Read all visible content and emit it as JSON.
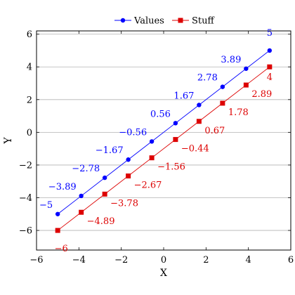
{
  "chart_data": {
    "type": "line",
    "xlabel": "X",
    "ylabel": "Y",
    "xlim": [
      -6,
      6
    ],
    "ylim": [
      -7.2,
      6.2
    ],
    "xticks": [
      -6,
      -4,
      -2,
      0,
      2,
      4,
      6
    ],
    "yticks": [
      -6,
      -4,
      -2,
      0,
      2,
      4,
      6
    ],
    "ytick_labels": [
      "−6",
      "−4",
      "−2",
      "0",
      "2",
      "4",
      "6"
    ],
    "xtick_labels": [
      "−6",
      "−4",
      "−2",
      "0",
      "2",
      "4",
      "6"
    ],
    "grid": "horizontal",
    "legend_placement": "top-center, outside",
    "series": [
      {
        "name": "Values",
        "color": "#0000ff",
        "marker": "circle",
        "x": [
          -5,
          -3.89,
          -2.78,
          -1.67,
          -0.56,
          0.56,
          1.67,
          2.78,
          3.89,
          5
        ],
        "y": [
          -5,
          -3.89,
          -2.78,
          -1.67,
          -0.56,
          0.56,
          1.67,
          2.78,
          3.89,
          5
        ],
        "labels": [
          "−5",
          "−3.89",
          "−2.78",
          "−1.67",
          "−0.56",
          "0.56",
          "1.67",
          "2.78",
          "3.89",
          "5"
        ]
      },
      {
        "name": "Stuff",
        "color": "#dd0000",
        "marker": "square",
        "x": [
          -5,
          -3.89,
          -2.78,
          -1.67,
          -0.56,
          0.56,
          1.67,
          2.78,
          3.89,
          5
        ],
        "y": [
          -6,
          -4.89,
          -3.78,
          -2.67,
          -1.56,
          -0.44,
          0.67,
          1.78,
          2.89,
          4
        ],
        "labels": [
          "−6",
          "−4.89",
          "−3.78",
          "−2.67",
          "−1.56",
          "−0.44",
          "0.67",
          "1.78",
          "2.89",
          "4"
        ]
      }
    ]
  }
}
